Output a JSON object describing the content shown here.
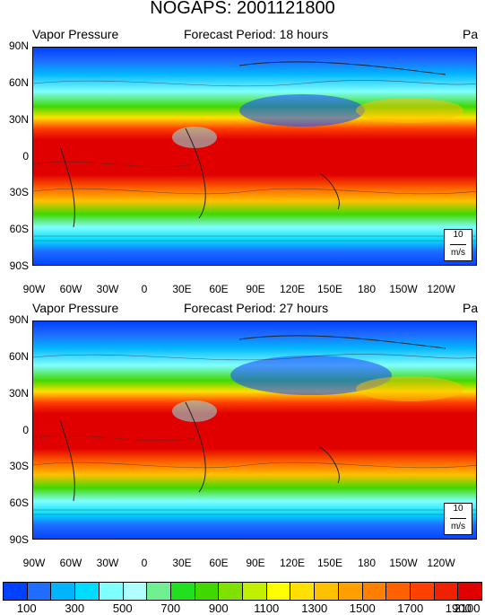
{
  "title": "NOGAPS: 2001121800",
  "panels": [
    {
      "variable": "Vapor Pressure",
      "forecast": "Forecast Period: 18 hours",
      "units": "Pa",
      "ref_vector": "10",
      "ref_units": "m/s"
    },
    {
      "variable": "Vapor Pressure",
      "forecast": "Forecast Period: 27 hours",
      "units": "Pa",
      "ref_vector": "10",
      "ref_units": "m/s"
    }
  ],
  "lat_labels": [
    "90N",
    "60N",
    "30N",
    "0",
    "30S",
    "60S",
    "90S"
  ],
  "lon_labels": [
    "90W",
    "60W",
    "30W",
    "0",
    "30E",
    "60E",
    "90E",
    "120E",
    "150E",
    "180",
    "150W",
    "120W"
  ],
  "legend": {
    "labels": [
      "100",
      "300",
      "500",
      "700",
      "900",
      "1100",
      "1300",
      "1500",
      "1700",
      "1900",
      "2100"
    ],
    "colors": [
      "#0040ff",
      "#1f6cff",
      "#00b4ff",
      "#00dcff",
      "#80ffff",
      "#b0ffff",
      "#70f090",
      "#20e020",
      "#40d800",
      "#80e000",
      "#c0f000",
      "#ffff00",
      "#ffe000",
      "#ffc000",
      "#ffa000",
      "#ff8000",
      "#ff6000",
      "#ff4000",
      "#f02000",
      "#e00000"
    ]
  }
}
